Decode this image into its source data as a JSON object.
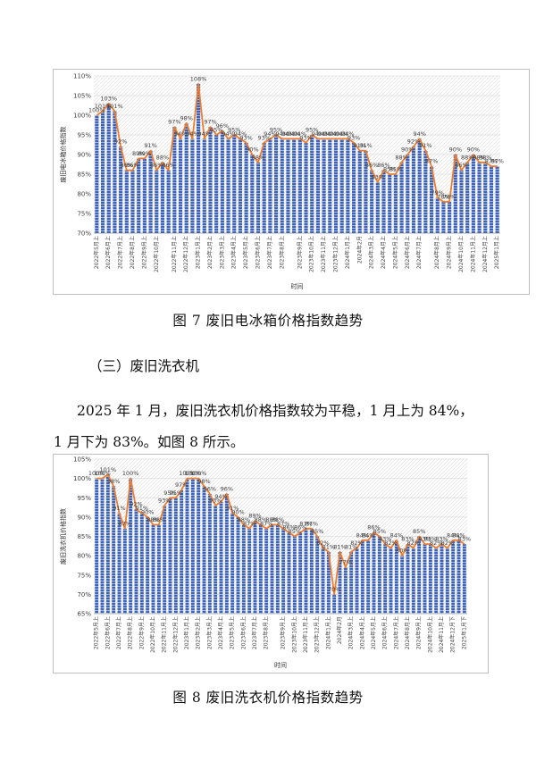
{
  "figure7": {
    "caption": "图 7  废旧电冰箱价格指数趋势",
    "chart_data": {
      "type": "bar",
      "overlay": "line",
      "ylabel": "废旧电冰箱价格指数",
      "xlabel": "时间",
      "ylim": [
        70,
        110
      ],
      "yticks": [
        "70%",
        "75%",
        "80%",
        "85%",
        "90%",
        "95%",
        "100%",
        "105%",
        "110%"
      ],
      "x_tick_labels": [
        "2022年5月上",
        "2022年6月上",
        "2022年7月上",
        "2022年8月上",
        "2022年9月上",
        "2022年10月上",
        "2022年11月上",
        "2022年12月上",
        "2023年1月上",
        "2023年2月上",
        "2023年3月上",
        "2023年4月上",
        "2023年5月上",
        "2023年6月上",
        "2023年7月上",
        "2023年8月上",
        "2023年9月上",
        "2023年10月上",
        "2023年11月上",
        "2023年12月上",
        "2024年1月上",
        "2024年2月",
        "2024年3月上",
        "2024年4月上",
        "2024年5月上",
        "2024年6月上",
        "2024年7月上",
        "2024年8月上",
        "2024年9月上",
        "2024年10月上",
        "2024年11月上",
        "2024年12月上",
        "2025年1月上"
      ],
      "values": [
        100,
        101,
        103,
        101,
        92,
        86,
        86,
        89,
        89,
        91,
        86,
        88,
        86,
        97,
        94,
        98,
        94,
        108,
        94,
        97,
        95,
        96,
        94,
        95,
        94,
        93,
        90,
        88,
        93,
        94,
        95,
        94,
        94,
        94,
        94,
        93,
        95,
        94,
        94,
        94,
        94,
        94,
        94,
        93,
        91,
        91,
        86,
        83,
        86,
        85,
        85,
        88,
        90,
        92,
        94,
        91,
        87,
        79,
        78,
        78,
        90,
        86,
        88,
        90,
        88,
        88,
        87,
        87
      ]
    }
  },
  "section_heading": "（三）废旧洗衣机",
  "paragraph_line1": "2025 年 1 月，废旧洗衣机价格指数较为平稳，1 月上为 84%，",
  "paragraph_line2": "1 月下为 83%。如图 8 所示。",
  "figure8": {
    "caption": "图 8  废旧洗衣机价格指数趋势",
    "chart_data": {
      "type": "bar",
      "overlay": "line",
      "ylabel": "废旧洗衣机价格指数",
      "xlabel": "时间",
      "ylim": [
        65,
        105
      ],
      "yticks": [
        "65%",
        "70%",
        "75%",
        "80%",
        "85%",
        "90%",
        "95%",
        "100%",
        "105%"
      ],
      "x_tick_labels": [
        "2022年5月上",
        "2022年6月上",
        "2022年7月上",
        "2022年8月上",
        "2022年9月上",
        "2022年10月上",
        "2022年11月上",
        "2022年12月上",
        "2023年1月上",
        "2023年2月上",
        "2023年3月上",
        "2023年4月上",
        "2023年5月上",
        "2023年6月上",
        "2023年7月上",
        "2023年8月上",
        "2023年9月上",
        "2023年10月上",
        "2023年11月上",
        "2023年12月上",
        "2024年1月上",
        "2024年2月",
        "2024年3月上",
        "2024年4月上",
        "2024年5月上",
        "2024年6月上",
        "2024年7月上",
        "2024年8月上",
        "2024年9月上",
        "2024年10月上",
        "2024年11月上",
        "2024年12月下",
        "2025年1月下"
      ],
      "values": [
        100,
        100,
        101,
        98,
        91,
        87,
        100,
        92,
        91,
        90,
        88,
        88,
        93,
        95,
        95,
        97,
        100,
        100,
        100,
        98,
        96,
        93,
        94,
        96,
        91,
        90,
        88,
        87,
        89,
        88,
        87,
        88,
        88,
        87,
        86,
        85,
        86,
        87,
        87,
        85,
        82,
        81,
        70,
        81,
        77,
        81,
        82,
        84,
        84,
        86,
        85,
        83,
        82,
        84,
        80,
        83,
        82,
        85,
        83,
        83,
        82,
        83,
        82,
        84,
        84,
        83
      ]
    }
  }
}
